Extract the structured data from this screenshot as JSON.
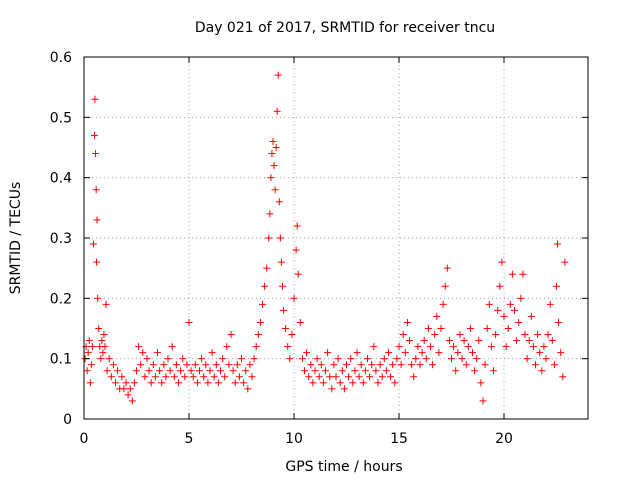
{
  "chart_data": {
    "type": "scatter",
    "title": "Day 021 of 2017, SRMTID for receiver tncu",
    "xlabel": "GPS time / hours",
    "ylabel": "SRMTID / TECUs",
    "xlim": [
      0,
      24
    ],
    "ylim": [
      0,
      0.6
    ],
    "xticks": [
      0,
      5,
      10,
      15,
      20
    ],
    "xtick_labels": [
      "0",
      "5",
      "10",
      "15",
      "20"
    ],
    "yticks": [
      0,
      0.1,
      0.2,
      0.3,
      0.4,
      0.5,
      0.6
    ],
    "ytick_labels": [
      "0",
      "0.1",
      "0.2",
      "0.3",
      "0.4",
      "0.5",
      "0.6"
    ],
    "grid": true,
    "marker": "+",
    "color": "#ff0000",
    "series": [
      {
        "name": "SRMTID",
        "points": [
          [
            0.05,
            0.1
          ],
          [
            0.1,
            0.12
          ],
          [
            0.15,
            0.08
          ],
          [
            0.2,
            0.11
          ],
          [
            0.25,
            0.13
          ],
          [
            0.3,
            0.06
          ],
          [
            0.35,
            0.09
          ],
          [
            0.4,
            0.12
          ],
          [
            0.45,
            0.29
          ],
          [
            0.5,
            0.47
          ],
          [
            0.52,
            0.53
          ],
          [
            0.55,
            0.44
          ],
          [
            0.58,
            0.38
          ],
          [
            0.6,
            0.26
          ],
          [
            0.62,
            0.33
          ],
          [
            0.65,
            0.2
          ],
          [
            0.7,
            0.15
          ],
          [
            0.75,
            0.12
          ],
          [
            0.8,
            0.1
          ],
          [
            0.85,
            0.13
          ],
          [
            0.9,
            0.11
          ],
          [
            0.95,
            0.14
          ],
          [
            1.0,
            0.12
          ],
          [
            1.05,
            0.19
          ],
          [
            1.1,
            0.08
          ],
          [
            1.2,
            0.1
          ],
          [
            1.3,
            0.07
          ],
          [
            1.4,
            0.09
          ],
          [
            1.5,
            0.06
          ],
          [
            1.6,
            0.08
          ],
          [
            1.7,
            0.05
          ],
          [
            1.8,
            0.07
          ],
          [
            1.9,
            0.05
          ],
          [
            2.0,
            0.06
          ],
          [
            2.1,
            0.04
          ],
          [
            2.2,
            0.05
          ],
          [
            2.3,
            0.03
          ],
          [
            2.4,
            0.06
          ],
          [
            2.5,
            0.08
          ],
          [
            2.6,
            0.12
          ],
          [
            2.7,
            0.09
          ],
          [
            2.8,
            0.11
          ],
          [
            2.9,
            0.07
          ],
          [
            3.0,
            0.1
          ],
          [
            3.1,
            0.08
          ],
          [
            3.2,
            0.06
          ],
          [
            3.3,
            0.09
          ],
          [
            3.4,
            0.07
          ],
          [
            3.5,
            0.11
          ],
          [
            3.6,
            0.08
          ],
          [
            3.7,
            0.06
          ],
          [
            3.8,
            0.09
          ],
          [
            3.9,
            0.07
          ],
          [
            4.0,
            0.1
          ],
          [
            4.1,
            0.08
          ],
          [
            4.2,
            0.12
          ],
          [
            4.3,
            0.07
          ],
          [
            4.4,
            0.09
          ],
          [
            4.5,
            0.06
          ],
          [
            4.6,
            0.08
          ],
          [
            4.7,
            0.1
          ],
          [
            4.8,
            0.07
          ],
          [
            4.9,
            0.09
          ],
          [
            5.0,
            0.16
          ],
          [
            5.1,
            0.08
          ],
          [
            5.2,
            0.07
          ],
          [
            5.3,
            0.09
          ],
          [
            5.4,
            0.06
          ],
          [
            5.5,
            0.08
          ],
          [
            5.6,
            0.1
          ],
          [
            5.7,
            0.07
          ],
          [
            5.8,
            0.09
          ],
          [
            5.9,
            0.06
          ],
          [
            6.0,
            0.08
          ],
          [
            6.1,
            0.11
          ],
          [
            6.2,
            0.07
          ],
          [
            6.3,
            0.09
          ],
          [
            6.4,
            0.06
          ],
          [
            6.5,
            0.08
          ],
          [
            6.6,
            0.1
          ],
          [
            6.7,
            0.07
          ],
          [
            6.8,
            0.12
          ],
          [
            6.9,
            0.09
          ],
          [
            7.0,
            0.14
          ],
          [
            7.1,
            0.08
          ],
          [
            7.2,
            0.06
          ],
          [
            7.3,
            0.09
          ],
          [
            7.4,
            0.07
          ],
          [
            7.5,
            0.1
          ],
          [
            7.6,
            0.06
          ],
          [
            7.7,
            0.08
          ],
          [
            7.8,
            0.05
          ],
          [
            7.9,
            0.09
          ],
          [
            8.0,
            0.07
          ],
          [
            8.1,
            0.1
          ],
          [
            8.2,
            0.12
          ],
          [
            8.3,
            0.14
          ],
          [
            8.4,
            0.16
          ],
          [
            8.5,
            0.19
          ],
          [
            8.6,
            0.22
          ],
          [
            8.7,
            0.25
          ],
          [
            8.8,
            0.3
          ],
          [
            8.85,
            0.34
          ],
          [
            8.9,
            0.4
          ],
          [
            8.95,
            0.44
          ],
          [
            9.0,
            0.46
          ],
          [
            9.05,
            0.42
          ],
          [
            9.1,
            0.38
          ],
          [
            9.15,
            0.45
          ],
          [
            9.2,
            0.51
          ],
          [
            9.25,
            0.57
          ],
          [
            9.3,
            0.36
          ],
          [
            9.35,
            0.3
          ],
          [
            9.4,
            0.26
          ],
          [
            9.45,
            0.22
          ],
          [
            9.5,
            0.18
          ],
          [
            9.6,
            0.15
          ],
          [
            9.7,
            0.12
          ],
          [
            9.8,
            0.1
          ],
          [
            9.9,
            0.14
          ],
          [
            10.0,
            0.2
          ],
          [
            10.1,
            0.28
          ],
          [
            10.15,
            0.32
          ],
          [
            10.2,
            0.24
          ],
          [
            10.3,
            0.16
          ],
          [
            10.4,
            0.1
          ],
          [
            10.5,
            0.08
          ],
          [
            10.6,
            0.11
          ],
          [
            10.7,
            0.07
          ],
          [
            10.8,
            0.09
          ],
          [
            10.9,
            0.06
          ],
          [
            11.0,
            0.08
          ],
          [
            11.1,
            0.1
          ],
          [
            11.2,
            0.07
          ],
          [
            11.3,
            0.09
          ],
          [
            11.4,
            0.06
          ],
          [
            11.5,
            0.08
          ],
          [
            11.6,
            0.11
          ],
          [
            11.7,
            0.07
          ],
          [
            11.8,
            0.05
          ],
          [
            11.9,
            0.09
          ],
          [
            12.0,
            0.07
          ],
          [
            12.1,
            0.1
          ],
          [
            12.2,
            0.06
          ],
          [
            12.3,
            0.08
          ],
          [
            12.4,
            0.05
          ],
          [
            12.5,
            0.09
          ],
          [
            12.6,
            0.07
          ],
          [
            12.7,
            0.1
          ],
          [
            12.8,
            0.06
          ],
          [
            12.9,
            0.08
          ],
          [
            13.0,
            0.11
          ],
          [
            13.1,
            0.07
          ],
          [
            13.2,
            0.09
          ],
          [
            13.3,
            0.06
          ],
          [
            13.4,
            0.08
          ],
          [
            13.5,
            0.1
          ],
          [
            13.6,
            0.07
          ],
          [
            13.7,
            0.09
          ],
          [
            13.8,
            0.12
          ],
          [
            13.9,
            0.08
          ],
          [
            14.0,
            0.06
          ],
          [
            14.1,
            0.09
          ],
          [
            14.2,
            0.07
          ],
          [
            14.3,
            0.1
          ],
          [
            14.4,
            0.08
          ],
          [
            14.5,
            0.11
          ],
          [
            14.6,
            0.07
          ],
          [
            14.7,
            0.09
          ],
          [
            14.8,
            0.06
          ],
          [
            14.9,
            0.1
          ],
          [
            15.0,
            0.12
          ],
          [
            15.1,
            0.09
          ],
          [
            15.2,
            0.14
          ],
          [
            15.3,
            0.11
          ],
          [
            15.4,
            0.16
          ],
          [
            15.5,
            0.13
          ],
          [
            15.6,
            0.09
          ],
          [
            15.7,
            0.07
          ],
          [
            15.8,
            0.1
          ],
          [
            15.9,
            0.12
          ],
          [
            16.0,
            0.09
          ],
          [
            16.1,
            0.11
          ],
          [
            16.2,
            0.13
          ],
          [
            16.3,
            0.1
          ],
          [
            16.4,
            0.15
          ],
          [
            16.5,
            0.12
          ],
          [
            16.6,
            0.09
          ],
          [
            16.7,
            0.14
          ],
          [
            16.8,
            0.17
          ],
          [
            16.9,
            0.11
          ],
          [
            17.0,
            0.15
          ],
          [
            17.1,
            0.19
          ],
          [
            17.2,
            0.22
          ],
          [
            17.3,
            0.25
          ],
          [
            17.4,
            0.13
          ],
          [
            17.5,
            0.1
          ],
          [
            17.6,
            0.12
          ],
          [
            17.7,
            0.08
          ],
          [
            17.8,
            0.11
          ],
          [
            17.9,
            0.14
          ],
          [
            18.0,
            0.1
          ],
          [
            18.1,
            0.13
          ],
          [
            18.2,
            0.09
          ],
          [
            18.3,
            0.12
          ],
          [
            18.4,
            0.15
          ],
          [
            18.5,
            0.11
          ],
          [
            18.6,
            0.08
          ],
          [
            18.7,
            0.1
          ],
          [
            18.8,
            0.13
          ],
          [
            18.9,
            0.06
          ],
          [
            19.0,
            0.03
          ],
          [
            19.1,
            0.09
          ],
          [
            19.2,
            0.15
          ],
          [
            19.3,
            0.19
          ],
          [
            19.4,
            0.12
          ],
          [
            19.5,
            0.08
          ],
          [
            19.6,
            0.14
          ],
          [
            19.7,
            0.18
          ],
          [
            19.8,
            0.22
          ],
          [
            19.9,
            0.26
          ],
          [
            20.0,
            0.17
          ],
          [
            20.1,
            0.12
          ],
          [
            20.2,
            0.15
          ],
          [
            20.3,
            0.19
          ],
          [
            20.4,
            0.24
          ],
          [
            20.5,
            0.18
          ],
          [
            20.6,
            0.13
          ],
          [
            20.7,
            0.16
          ],
          [
            20.8,
            0.2
          ],
          [
            20.9,
            0.24
          ],
          [
            21.0,
            0.14
          ],
          [
            21.1,
            0.1
          ],
          [
            21.2,
            0.13
          ],
          [
            21.3,
            0.17
          ],
          [
            21.4,
            0.12
          ],
          [
            21.5,
            0.09
          ],
          [
            21.6,
            0.14
          ],
          [
            21.7,
            0.11
          ],
          [
            21.8,
            0.08
          ],
          [
            21.9,
            0.12
          ],
          [
            22.0,
            0.1
          ],
          [
            22.1,
            0.14
          ],
          [
            22.2,
            0.19
          ],
          [
            22.3,
            0.13
          ],
          [
            22.4,
            0.09
          ],
          [
            22.5,
            0.22
          ],
          [
            22.55,
            0.29
          ],
          [
            22.6,
            0.16
          ],
          [
            22.7,
            0.11
          ],
          [
            22.8,
            0.07
          ],
          [
            22.9,
            0.26
          ]
        ]
      }
    ]
  }
}
